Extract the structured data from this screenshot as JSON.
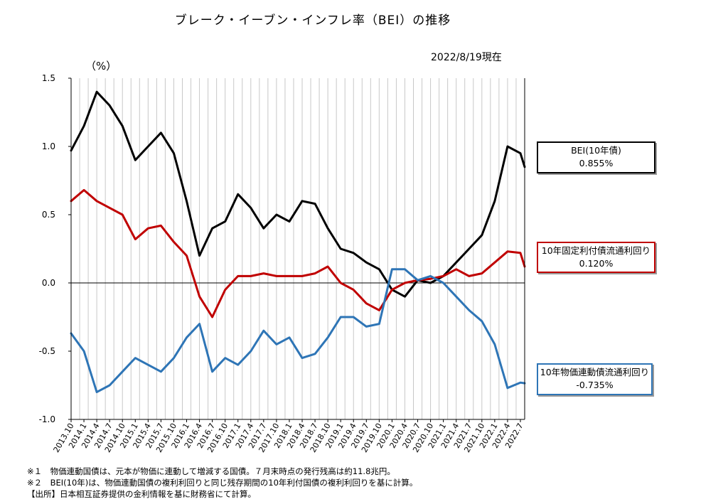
{
  "title": "ブレーク・イーブン・インフレ率（BEI）の推移",
  "as_of": "2022/8/19現在",
  "unit": "（%）",
  "colors": {
    "bei": "#000000",
    "fixed": "#c00000",
    "linker": "#2e75b6",
    "grid": "#c8c8c8"
  },
  "callouts": {
    "bei": {
      "name": "BEI(10年債)",
      "value": "0.855%"
    },
    "fixed": {
      "name": "10年固定利付債流通利回り",
      "value": "0.120%"
    },
    "linker": {
      "name": "10年物価連動債流通利回り",
      "value": "-0.735%"
    }
  },
  "notes": [
    "※１　物価連動国債は、元本が物価に連動して増減する国債。７月末時点の発行残高は約11.8兆円。",
    "※２　BEI(10年)は、物価連動国債の複利利回りと同じ残存期間の10年利付国債の複利利回りを基に計算。",
    "【出所】日本相互証券提供の金利情報を基に財務省にて計算。"
  ],
  "chart_data": {
    "type": "line",
    "title": "ブレーク・イーブン・インフレ率（BEI）の推移",
    "ylabel": "（%）",
    "ylim": [
      -1.0,
      1.5
    ],
    "yticks": [
      "-1.0",
      "-0.5",
      "0.0",
      "0.5",
      "1.0",
      "1.5"
    ],
    "grid": true,
    "x_range": [
      "2013.10",
      "2022.8"
    ],
    "x_tick_labels": [
      "2013.10",
      "2014.1",
      "2014.4",
      "2014.7",
      "2014.10",
      "2015.1",
      "2015.4",
      "2015.7",
      "2015.10",
      "2016.1",
      "2016.4",
      "2016.7",
      "2016.10",
      "2017.1",
      "2017.4",
      "2017.7",
      "2017.10",
      "2018.1",
      "2018.4",
      "2018.7",
      "2018.10",
      "2019.1",
      "2019.4",
      "2019.7",
      "2019.10",
      "2020.1",
      "2020.4",
      "2020.7",
      "2020.10",
      "2021.1",
      "2021.4",
      "2021.7",
      "2021.10",
      "2022.1",
      "2022.4",
      "2022.7"
    ],
    "series": [
      {
        "name": "BEI(10年債)",
        "x": [
          "2013.10",
          "2014.1",
          "2014.4",
          "2014.7",
          "2014.10",
          "2015.1",
          "2015.4",
          "2015.7",
          "2015.10",
          "2016.1",
          "2016.4",
          "2016.7",
          "2016.10",
          "2017.1",
          "2017.4",
          "2017.7",
          "2017.10",
          "2018.1",
          "2018.4",
          "2018.7",
          "2018.10",
          "2019.1",
          "2019.4",
          "2019.7",
          "2019.10",
          "2020.1",
          "2020.4",
          "2020.7",
          "2020.10",
          "2021.1",
          "2021.4",
          "2021.7",
          "2021.10",
          "2022.1",
          "2022.4",
          "2022.7",
          "2022.8"
        ],
        "values": [
          0.97,
          1.15,
          1.4,
          1.3,
          1.15,
          0.9,
          1.0,
          1.1,
          0.95,
          0.6,
          0.2,
          0.4,
          0.45,
          0.65,
          0.55,
          0.4,
          0.5,
          0.45,
          0.6,
          0.58,
          0.4,
          0.25,
          0.22,
          0.15,
          0.1,
          -0.05,
          -0.1,
          0.02,
          0.0,
          0.05,
          0.15,
          0.25,
          0.35,
          0.6,
          1.0,
          0.95,
          0.85
        ]
      },
      {
        "name": "10年固定利付債流通利回り",
        "x": [
          "2013.10",
          "2014.1",
          "2014.4",
          "2014.7",
          "2014.10",
          "2015.1",
          "2015.4",
          "2015.7",
          "2015.10",
          "2016.1",
          "2016.4",
          "2016.7",
          "2016.10",
          "2017.1",
          "2017.4",
          "2017.7",
          "2017.10",
          "2018.1",
          "2018.4",
          "2018.7",
          "2018.10",
          "2019.1",
          "2019.4",
          "2019.7",
          "2019.10",
          "2020.1",
          "2020.4",
          "2020.7",
          "2020.10",
          "2021.1",
          "2021.4",
          "2021.7",
          "2021.10",
          "2022.1",
          "2022.4",
          "2022.7",
          "2022.8"
        ],
        "values": [
          0.6,
          0.68,
          0.6,
          0.55,
          0.5,
          0.32,
          0.4,
          0.42,
          0.3,
          0.2,
          -0.1,
          -0.25,
          -0.05,
          0.05,
          0.05,
          0.07,
          0.05,
          0.05,
          0.05,
          0.07,
          0.12,
          0.0,
          -0.05,
          -0.15,
          -0.2,
          -0.05,
          0.0,
          0.02,
          0.03,
          0.05,
          0.1,
          0.05,
          0.07,
          0.15,
          0.23,
          0.22,
          0.12
        ]
      },
      {
        "name": "10年物価連動債流通利回り",
        "x": [
          "2013.10",
          "2014.1",
          "2014.4",
          "2014.7",
          "2014.10",
          "2015.1",
          "2015.4",
          "2015.7",
          "2015.10",
          "2016.1",
          "2016.4",
          "2016.7",
          "2016.10",
          "2017.1",
          "2017.4",
          "2017.7",
          "2017.10",
          "2018.1",
          "2018.4",
          "2018.7",
          "2018.10",
          "2019.1",
          "2019.4",
          "2019.7",
          "2019.10",
          "2020.1",
          "2020.4",
          "2020.7",
          "2020.10",
          "2021.1",
          "2021.4",
          "2021.7",
          "2021.10",
          "2022.1",
          "2022.4",
          "2022.7",
          "2022.8"
        ],
        "values": [
          -0.37,
          -0.5,
          -0.8,
          -0.75,
          -0.65,
          -0.55,
          -0.6,
          -0.65,
          -0.55,
          -0.4,
          -0.3,
          -0.65,
          -0.55,
          -0.6,
          -0.5,
          -0.35,
          -0.45,
          -0.4,
          -0.55,
          -0.52,
          -0.4,
          -0.25,
          -0.25,
          -0.32,
          -0.3,
          0.1,
          0.1,
          0.02,
          0.05,
          0.0,
          -0.1,
          -0.2,
          -0.28,
          -0.45,
          -0.77,
          -0.73,
          -0.735
        ]
      }
    ]
  }
}
